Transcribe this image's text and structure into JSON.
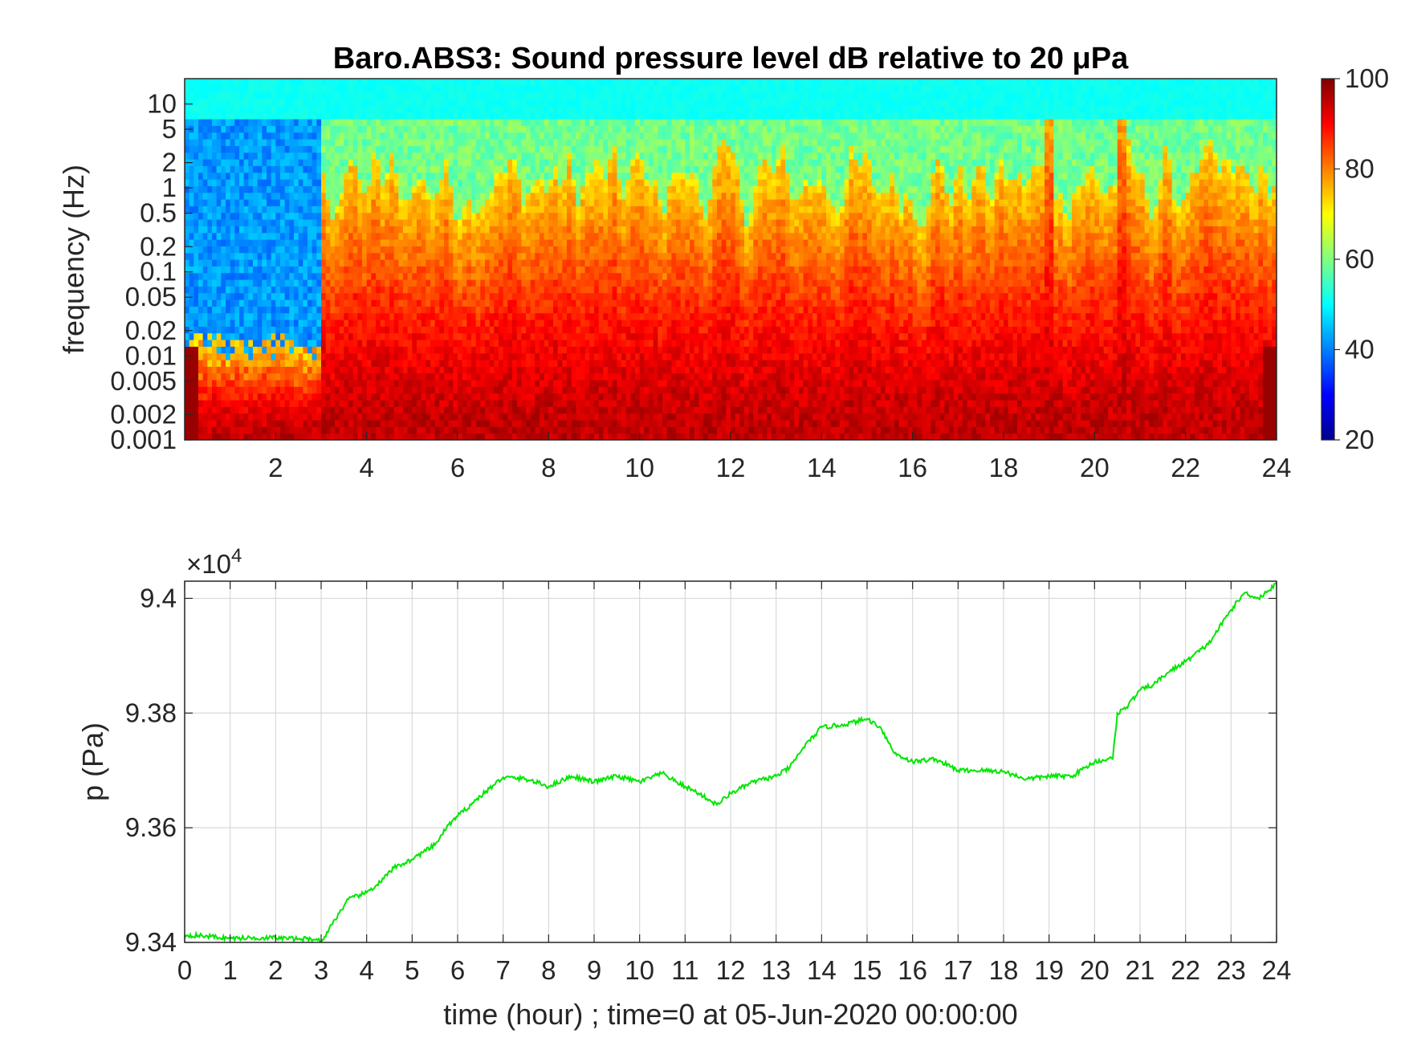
{
  "chart_data": [
    {
      "type": "heatmap",
      "title": "Baro.ABS3: Sound pressure level dB relative to 20 μPa",
      "ylabel": "frequency (Hz)",
      "xlabel": "",
      "x_ticks": [
        2,
        4,
        6,
        8,
        10,
        12,
        14,
        16,
        18,
        20,
        22,
        24
      ],
      "xlim": [
        0,
        24
      ],
      "y_scale": "log",
      "ylim": [
        0.001,
        20
      ],
      "y_tick_labels": [
        "0.001",
        "0.002",
        "0.005",
        "0.01",
        "0.02",
        "0.05",
        "0.1",
        "0.2",
        "0.5",
        "1",
        "2",
        "5",
        "10"
      ],
      "y_ticks": [
        0.001,
        0.002,
        0.005,
        0.01,
        0.02,
        0.05,
        0.1,
        0.2,
        0.5,
        1,
        2,
        5,
        10
      ],
      "colorbar": {
        "min": 20,
        "max": 100,
        "ticks": [
          20,
          40,
          60,
          80,
          100
        ],
        "colormap": "jet"
      },
      "description_levels": {
        "high_freq_band_dB": 50,
        "low_freq_band_dB": 95,
        "quiet_period_hours": [
          0,
          3
        ],
        "spike_hours": [
          19,
          20.6
        ]
      }
    },
    {
      "type": "line",
      "xlabel": "time (hour) ; time=0 at 05-Jun-2020 00:00:00",
      "ylabel": "p (Pa)",
      "exponent_label": "×10",
      "exponent_power": "4",
      "xlim": [
        0,
        24
      ],
      "x_ticks": [
        0,
        1,
        2,
        3,
        4,
        5,
        6,
        7,
        8,
        9,
        10,
        11,
        12,
        13,
        14,
        15,
        16,
        17,
        18,
        19,
        20,
        21,
        22,
        23,
        24
      ],
      "ylim": [
        9.34,
        9.403
      ],
      "y_ticks": [
        9.34,
        9.36,
        9.38,
        9.4
      ],
      "y_tick_labels": [
        "9.34",
        "9.36",
        "9.38",
        "9.4"
      ],
      "grid": true,
      "series": [
        {
          "color": "#00e600",
          "x": [
            0,
            0.5,
            1,
            1.5,
            2,
            2.5,
            2.9,
            3.0,
            3.3,
            3.6,
            4.0,
            4.3,
            4.6,
            5.0,
            5.5,
            5.8,
            6.0,
            6.5,
            7.0,
            7.5,
            8.0,
            8.5,
            9.0,
            9.5,
            10.0,
            10.5,
            10.8,
            11.0,
            11.3,
            11.7,
            12.0,
            12.5,
            13.0,
            13.3,
            13.6,
            14.0,
            14.5,
            15.0,
            15.3,
            15.6,
            16.0,
            16.5,
            17.0,
            17.5,
            18.0,
            18.5,
            19.0,
            19.5,
            20.0,
            20.3,
            20.4,
            20.5,
            20.7,
            21.0,
            21.3,
            21.6,
            22.0,
            22.5,
            23.0,
            23.3,
            23.6,
            24.0
          ],
          "y": [
            9.3413,
            9.3411,
            9.3407,
            9.3408,
            9.3408,
            9.3406,
            9.3406,
            9.34,
            9.344,
            9.3475,
            9.3487,
            9.3505,
            9.353,
            9.3545,
            9.357,
            9.3605,
            9.362,
            9.3655,
            9.3688,
            9.3685,
            9.3672,
            9.369,
            9.368,
            9.369,
            9.368,
            9.3695,
            9.368,
            9.3672,
            9.366,
            9.364,
            9.366,
            9.368,
            9.369,
            9.3705,
            9.374,
            9.3775,
            9.378,
            9.379,
            9.3775,
            9.373,
            9.3715,
            9.372,
            9.37,
            9.37,
            9.3698,
            9.3685,
            9.369,
            9.369,
            9.3715,
            9.372,
            9.372,
            9.38,
            9.381,
            9.384,
            9.385,
            9.387,
            9.389,
            9.392,
            9.398,
            9.401,
            9.4,
            9.4025
          ]
        }
      ]
    }
  ]
}
